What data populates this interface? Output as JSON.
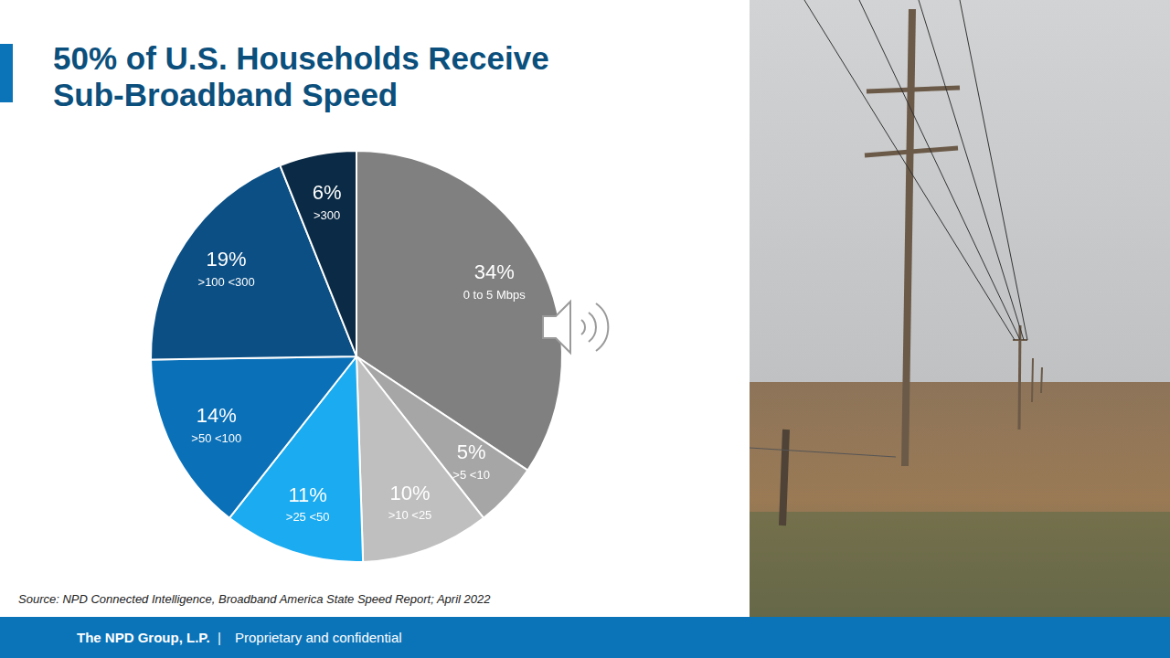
{
  "chart_data": {
    "type": "pie",
    "title": "50% of U.S. Households Receive Sub-Broadband Speed",
    "categories": [
      "0 to 5 Mbps",
      ">5 <10",
      ">10 <25",
      ">25 <50",
      ">50 <100",
      ">100 <300",
      ">300"
    ],
    "values": [
      34,
      5,
      10,
      11,
      14,
      19,
      6
    ],
    "value_labels": [
      "34%",
      "5%",
      "10%",
      "11%",
      "14%",
      "19%",
      "6%"
    ],
    "colors": [
      "#808080",
      "#a6a6a6",
      "#bfbfbf",
      "#1aabf0",
      "#0a70b8",
      "#0b4f85",
      "#0a2a45"
    ],
    "data_labels": true
  },
  "source": "Source: NPD Connected Intelligence, Broadband America State Speed Report; April 2022",
  "footer": {
    "company": "The NPD Group, L.P.",
    "separator": "|",
    "note": "Proprietary and confidential"
  }
}
